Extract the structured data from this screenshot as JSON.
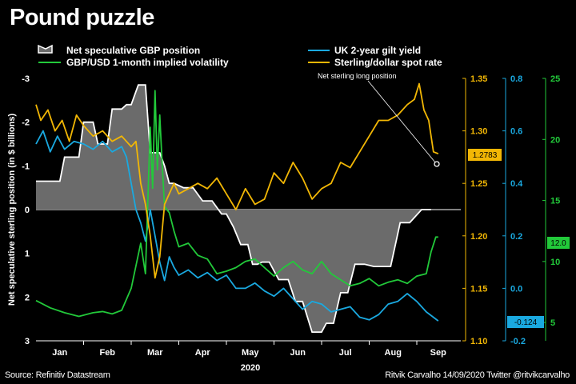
{
  "title": "Pound puzzle",
  "footer": {
    "source": "Source: Refinitiv Datastream",
    "credit": "Ritvik Carvalho 14/09/2020 Twitter @ritvikcarvalho"
  },
  "colors": {
    "background": "#000000",
    "position_fill": "#6b6b6b",
    "position_line": "#ffffff",
    "gilt": "#1aa9e0",
    "spot": "#f2b705",
    "vol": "#22c93a"
  },
  "chart_data": {
    "type": "line",
    "x_year_label": "2020",
    "months": [
      "Jan",
      "Feb",
      "Mar",
      "Apr",
      "May",
      "Jun",
      "Jul",
      "Aug",
      "Sep"
    ],
    "annotation": "Net sterling long position",
    "axes": {
      "left": {
        "label": "Net speculative sterling position (in $ billions)",
        "ticks": [
          "-3",
          "-2",
          "-1",
          "0",
          "1",
          "2",
          "3"
        ],
        "range": [
          -3,
          3
        ],
        "inverted": true
      },
      "spot": {
        "ticks": [
          "1.35",
          "1.30",
          "1.25",
          "1.20",
          "1.15",
          "1.10"
        ],
        "range": [
          1.1,
          1.35
        ],
        "color": "#f2b705"
      },
      "gilt": {
        "ticks": [
          "0.8",
          "0.6",
          "0.4",
          "0.2",
          "0.0",
          "-0.2"
        ],
        "range": [
          -0.2,
          0.8
        ],
        "color": "#1aa9e0"
      },
      "vol": {
        "ticks": [
          "25",
          "20",
          "15",
          "10",
          "5"
        ],
        "range": [
          3.5,
          25
        ],
        "color": "#22c93a"
      }
    },
    "series": [
      {
        "name": "Net speculative GBP position",
        "axis": "left",
        "style": "area",
        "x": [
          0,
          0.5,
          0.6,
          0.9,
          1.0,
          1.2,
          1.3,
          1.5,
          1.6,
          1.8,
          1.9,
          2.0,
          2.15,
          2.3,
          2.4,
          2.6,
          2.7,
          2.8,
          2.9,
          3.1,
          3.3,
          3.5,
          3.7,
          3.9,
          4.0,
          4.15,
          4.3,
          4.45,
          4.55,
          4.65,
          4.75,
          4.9,
          5.1,
          5.3,
          5.45,
          5.6,
          5.8,
          6.0,
          6.1,
          6.25,
          6.4,
          6.55,
          6.7,
          6.9,
          7.1,
          7.2,
          7.45,
          7.65,
          7.85,
          8.1,
          8.3
        ],
        "y": [
          -0.65,
          -0.65,
          -1.2,
          -1.2,
          -2.0,
          -2.0,
          -1.5,
          -1.5,
          -2.3,
          -2.3,
          -2.4,
          -2.4,
          -2.85,
          -2.85,
          -1.3,
          -1.3,
          -1.0,
          -0.6,
          -0.6,
          -0.5,
          -0.5,
          -0.2,
          -0.2,
          0.1,
          0.1,
          0.4,
          0.8,
          0.8,
          1.25,
          1.25,
          1.2,
          1.2,
          1.6,
          1.6,
          2.1,
          2.1,
          2.8,
          2.8,
          2.6,
          2.6,
          1.9,
          1.9,
          1.25,
          1.25,
          1.3,
          1.3,
          1.3,
          0.3,
          0.3,
          0,
          0
        ]
      },
      {
        "name": "UK 2-year gilt yield",
        "axis": "gilt",
        "x": [
          0,
          0.15,
          0.3,
          0.45,
          0.6,
          0.8,
          1.0,
          1.2,
          1.4,
          1.6,
          1.8,
          1.9,
          2.0,
          2.1,
          2.2,
          2.3,
          2.4,
          2.5,
          2.6,
          2.7,
          2.8,
          2.9,
          3.0,
          3.2,
          3.4,
          3.6,
          3.8,
          4.0,
          4.2,
          4.4,
          4.6,
          4.8,
          5.0,
          5.2,
          5.4,
          5.6,
          5.8,
          6.0,
          6.2,
          6.4,
          6.6,
          6.8,
          7.0,
          7.2,
          7.4,
          7.6,
          7.8,
          8.0,
          8.2,
          8.45
        ],
        "y": [
          0.55,
          0.6,
          0.52,
          0.58,
          0.53,
          0.56,
          0.55,
          0.53,
          0.56,
          0.52,
          0.54,
          0.5,
          0.4,
          0.3,
          0.25,
          0.18,
          0.3,
          0.2,
          0.1,
          0.03,
          0.12,
          0.08,
          0.05,
          0.07,
          0.04,
          0.06,
          0.03,
          0.05,
          0.0,
          0.0,
          0.02,
          -0.01,
          -0.03,
          0.0,
          -0.04,
          -0.08,
          -0.05,
          -0.06,
          -0.09,
          -0.08,
          -0.07,
          -0.11,
          -0.12,
          -0.1,
          -0.06,
          -0.05,
          -0.02,
          -0.05,
          -0.09,
          -0.124
        ]
      },
      {
        "name": "GBP/USD 1-month implied volatility",
        "axis": "vol",
        "x": [
          0,
          0.3,
          0.6,
          0.9,
          1.2,
          1.4,
          1.6,
          1.8,
          2.0,
          2.2,
          2.3,
          2.4,
          2.45,
          2.5,
          2.55,
          2.6,
          2.65,
          2.7,
          2.8,
          2.9,
          3.0,
          3.2,
          3.4,
          3.6,
          3.8,
          4.0,
          4.2,
          4.4,
          4.6,
          4.8,
          5.0,
          5.2,
          5.4,
          5.6,
          5.8,
          6.0,
          6.2,
          6.4,
          6.6,
          6.8,
          7.0,
          7.2,
          7.4,
          7.6,
          7.8,
          8.0,
          8.2,
          8.3,
          8.4,
          8.45
        ],
        "y": [
          6.8,
          6.2,
          5.8,
          5.5,
          5.8,
          5.9,
          5.7,
          6.0,
          7.8,
          11.5,
          9.0,
          21.0,
          16.0,
          24.0,
          17.5,
          22.0,
          18.0,
          14.5,
          14.0,
          12.5,
          11.2,
          11.5,
          10.5,
          10.2,
          9.0,
          9.2,
          9.5,
          10.0,
          10.2,
          9.5,
          8.8,
          9.5,
          10.0,
          9.3,
          9.0,
          10.0,
          9.0,
          8.5,
          8.0,
          8.2,
          8.6,
          8.0,
          8.3,
          8.5,
          8.2,
          8.8,
          9.0,
          10.8,
          12.0,
          12.0
        ]
      },
      {
        "name": "Sterling/dollar spot rate",
        "axis": "spot",
        "x": [
          0,
          0.1,
          0.25,
          0.4,
          0.55,
          0.7,
          0.85,
          1.0,
          1.2,
          1.4,
          1.6,
          1.8,
          2.0,
          2.1,
          2.2,
          2.3,
          2.4,
          2.5,
          2.6,
          2.7,
          2.8,
          2.9,
          3.0,
          3.2,
          3.4,
          3.6,
          3.8,
          4.0,
          4.2,
          4.4,
          4.6,
          4.8,
          5.0,
          5.2,
          5.4,
          5.6,
          5.8,
          6.0,
          6.2,
          6.4,
          6.6,
          6.8,
          7.0,
          7.2,
          7.4,
          7.6,
          7.8,
          7.95,
          8.05,
          8.15,
          8.25,
          8.35,
          8.45
        ],
        "y": [
          1.325,
          1.31,
          1.32,
          1.3,
          1.31,
          1.29,
          1.315,
          1.305,
          1.295,
          1.3,
          1.29,
          1.295,
          1.285,
          1.29,
          1.25,
          1.23,
          1.2,
          1.16,
          1.18,
          1.23,
          1.24,
          1.25,
          1.24,
          1.245,
          1.25,
          1.245,
          1.255,
          1.24,
          1.225,
          1.245,
          1.23,
          1.235,
          1.26,
          1.25,
          1.27,
          1.255,
          1.235,
          1.245,
          1.25,
          1.27,
          1.265,
          1.28,
          1.295,
          1.31,
          1.31,
          1.315,
          1.325,
          1.33,
          1.345,
          1.32,
          1.31,
          1.28,
          1.2783
        ]
      }
    ],
    "end_labels": {
      "spot": "1.2783",
      "gilt": "-0.124",
      "vol": "12.0"
    }
  }
}
